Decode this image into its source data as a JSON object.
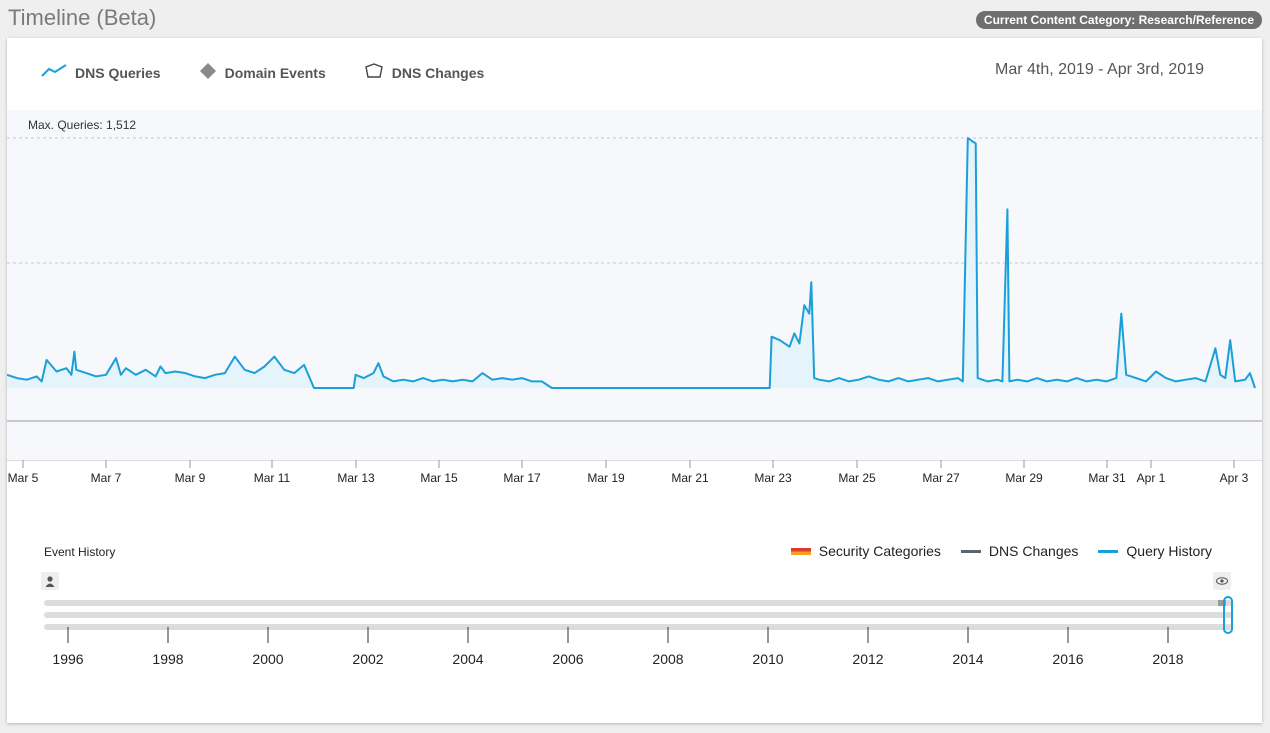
{
  "title": "Timeline (Beta)",
  "category_badge": "Current Content Category: Research/Reference",
  "legend": {
    "dns_queries": "DNS Queries",
    "domain_events": "Domain Events",
    "dns_changes": "DNS Changes"
  },
  "date_range": "Mar 4th, 2019 - Apr 3rd, 2019",
  "max_queries_label": "Max. Queries: 1,512",
  "chart_data": {
    "type": "line",
    "title": "",
    "xlabel": "",
    "ylabel": "",
    "x_ticks": [
      "Mar 5",
      "Mar 7",
      "Mar 9",
      "Mar 11",
      "Mar 13",
      "Mar 15",
      "Mar 17",
      "Mar 19",
      "Mar 21",
      "Mar 23",
      "Mar 25",
      "Mar 27",
      "Mar 29",
      "Mar 31",
      "Apr 1",
      "Apr 3"
    ],
    "ylim": [
      0,
      1512
    ],
    "grid": true,
    "series": [
      {
        "values": [
          [
            0,
            80
          ],
          [
            0.5,
            60
          ],
          [
            1,
            50
          ],
          [
            1.5,
            70
          ],
          [
            1.75,
            40
          ],
          [
            2,
            170
          ],
          [
            2.5,
            100
          ],
          [
            3,
            120
          ],
          [
            3.25,
            80
          ],
          [
            3.4,
            220
          ],
          [
            3.5,
            110
          ],
          [
            4,
            90
          ],
          [
            4.5,
            70
          ],
          [
            5,
            80
          ],
          [
            5.5,
            180
          ],
          [
            5.75,
            80
          ],
          [
            6,
            120
          ],
          [
            6.5,
            80
          ],
          [
            7,
            110
          ],
          [
            7.5,
            70
          ],
          [
            7.75,
            130
          ],
          [
            8,
            90
          ],
          [
            8.5,
            100
          ],
          [
            9,
            90
          ],
          [
            9.5,
            70
          ],
          [
            10,
            60
          ],
          [
            10.5,
            80
          ],
          [
            11,
            90
          ],
          [
            11.5,
            190
          ],
          [
            12,
            110
          ],
          [
            12.5,
            90
          ],
          [
            13,
            130
          ],
          [
            13.5,
            190
          ],
          [
            14,
            110
          ],
          [
            14.5,
            90
          ],
          [
            15,
            140
          ],
          [
            15.5,
            0
          ],
          [
            16,
            0
          ],
          [
            16.5,
            0
          ],
          [
            17,
            0
          ],
          [
            17.5,
            0
          ],
          [
            17.6,
            80
          ],
          [
            18,
            60
          ],
          [
            18.5,
            90
          ],
          [
            18.75,
            150
          ],
          [
            19,
            70
          ],
          [
            19.5,
            40
          ],
          [
            20,
            50
          ],
          [
            20.5,
            40
          ],
          [
            21,
            60
          ],
          [
            21.5,
            40
          ],
          [
            22,
            50
          ],
          [
            22.5,
            40
          ],
          [
            23,
            50
          ],
          [
            23.5,
            40
          ],
          [
            24,
            90
          ],
          [
            24.5,
            50
          ],
          [
            25,
            60
          ],
          [
            25.5,
            50
          ],
          [
            26,
            60
          ],
          [
            26.5,
            40
          ],
          [
            27,
            40
          ],
          [
            27.5,
            0
          ],
          [
            28,
            0
          ],
          [
            30,
            0
          ],
          [
            32,
            0
          ],
          [
            34,
            0
          ],
          [
            36,
            0
          ],
          [
            38.5,
            0
          ],
          [
            38.6,
            310
          ],
          [
            39,
            290
          ],
          [
            39.5,
            250
          ],
          [
            39.75,
            330
          ],
          [
            40,
            270
          ],
          [
            40.25,
            500
          ],
          [
            40.5,
            450
          ],
          [
            40.6,
            640
          ],
          [
            40.75,
            60
          ],
          [
            41,
            50
          ],
          [
            41.5,
            40
          ],
          [
            42,
            60
          ],
          [
            42.5,
            40
          ],
          [
            43,
            50
          ],
          [
            43.5,
            70
          ],
          [
            44,
            50
          ],
          [
            44.5,
            40
          ],
          [
            45,
            60
          ],
          [
            45.5,
            40
          ],
          [
            46,
            50
          ],
          [
            46.5,
            60
          ],
          [
            47,
            40
          ],
          [
            47.5,
            50
          ],
          [
            48,
            60
          ],
          [
            48.25,
            40
          ],
          [
            48.5,
            1512
          ],
          [
            48.75,
            1490
          ],
          [
            48.9,
            1480
          ],
          [
            49,
            60
          ],
          [
            49.5,
            40
          ],
          [
            50,
            50
          ],
          [
            50.25,
            40
          ],
          [
            50.5,
            1080
          ],
          [
            50.6,
            40
          ],
          [
            51,
            50
          ],
          [
            51.5,
            40
          ],
          [
            52,
            60
          ],
          [
            52.5,
            40
          ],
          [
            53,
            50
          ],
          [
            53.5,
            40
          ],
          [
            54,
            60
          ],
          [
            54.5,
            40
          ],
          [
            55,
            50
          ],
          [
            55.5,
            40
          ],
          [
            56,
            60
          ],
          [
            56.25,
            450
          ],
          [
            56.5,
            80
          ],
          [
            57,
            60
          ],
          [
            57.5,
            40
          ],
          [
            58,
            100
          ],
          [
            58.5,
            60
          ],
          [
            59,
            40
          ],
          [
            59.5,
            50
          ],
          [
            60,
            60
          ],
          [
            60.5,
            40
          ],
          [
            61,
            240
          ],
          [
            61.25,
            80
          ],
          [
            61.5,
            60
          ],
          [
            61.75,
            290
          ],
          [
            62,
            40
          ],
          [
            62.5,
            50
          ],
          [
            62.75,
            90
          ],
          [
            63,
            0
          ]
        ]
      }
    ]
  },
  "event_history": {
    "title": "Event History",
    "legend": {
      "security_categories": "Security Categories",
      "dns_changes": "DNS Changes",
      "query_history": "Query History"
    },
    "years": [
      "1996",
      "1998",
      "2000",
      "2002",
      "2004",
      "2006",
      "2008",
      "2010",
      "2012",
      "2014",
      "2016",
      "2018"
    ]
  },
  "colors": {
    "line": "#1aa0d8",
    "fill": "#e5f3fa"
  }
}
